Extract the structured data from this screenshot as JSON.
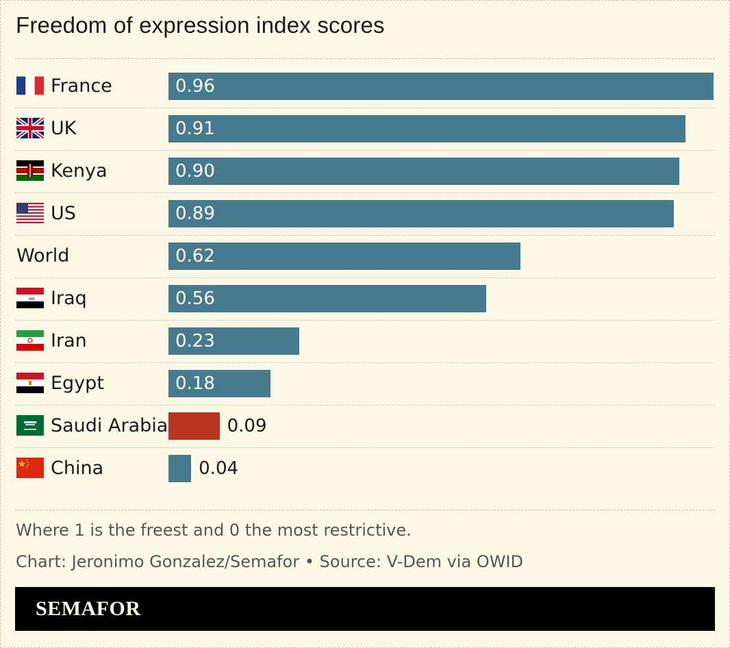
{
  "title": "Freedom of expression index scores",
  "chart_data": {
    "type": "bar",
    "orientation": "horizontal",
    "title": "Freedom of expression index scores",
    "categories": [
      "France",
      "UK",
      "Kenya",
      "US",
      "World",
      "Iraq",
      "Iran",
      "Egypt",
      "Saudi Arabia",
      "China"
    ],
    "values": [
      0.96,
      0.91,
      0.9,
      0.89,
      0.62,
      0.56,
      0.23,
      0.18,
      0.09,
      0.04
    ],
    "value_labels": [
      "0.96",
      "0.91",
      "0.90",
      "0.89",
      "0.62",
      "0.56",
      "0.23",
      "0.18",
      "0.09",
      "0.04"
    ],
    "flags": [
      "france-flag-icon",
      "uk-flag-icon",
      "kenya-flag-icon",
      "us-flag-icon",
      null,
      "iraq-flag-icon",
      "iran-flag-icon",
      "egypt-flag-icon",
      "saudi-arabia-flag-icon",
      "china-flag-icon"
    ],
    "highlight": "Saudi Arabia",
    "xlim": [
      0,
      0.96
    ],
    "grid": false,
    "colors": {
      "bar": "#457a8f",
      "highlight": "#b93323",
      "background": "#fcf8e6"
    }
  },
  "footnote": "Where 1 is the freest and 0 the most restrictive.",
  "credit": "Chart: Jeronimo Gonzalez/Semafor • Source: V-Dem via OWID",
  "brand": "SEMAFOR"
}
